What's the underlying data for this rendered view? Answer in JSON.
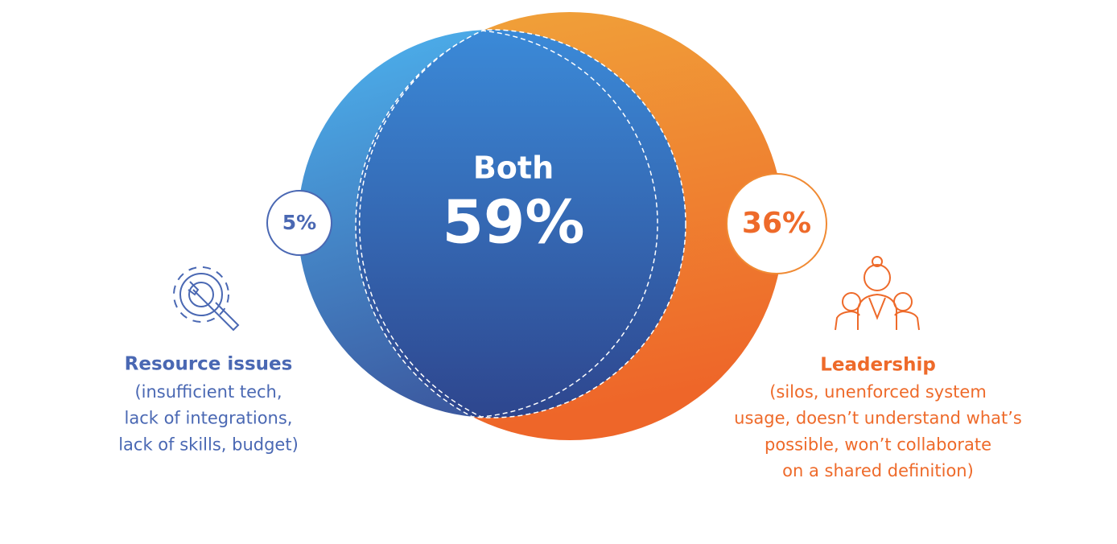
{
  "both": {
    "label": "Both",
    "value": "59%"
  },
  "resource": {
    "value": "5%",
    "title": "Resource issues",
    "lines": [
      "(insufficient tech,",
      "lack of integrations,",
      "lack of skills, budget)"
    ]
  },
  "leadership": {
    "value": "36%",
    "title": "Leadership",
    "lines": [
      "(silos, unenforced system",
      "usage, doesn’t understand what’s",
      "possible, won’t collaborate",
      "on a shared definition)"
    ]
  }
}
